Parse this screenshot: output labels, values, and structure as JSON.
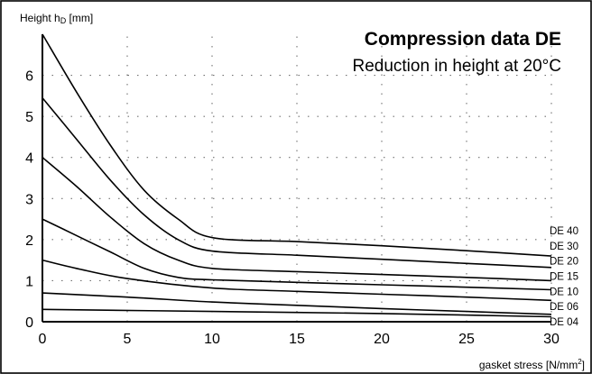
{
  "chart_data": {
    "type": "line",
    "title": "Compression data DE",
    "subtitle": "Reduction in height at 20°C",
    "ylabel": "Height h",
    "ylabel_subscript": "D",
    "ylabel_unit": "[mm]",
    "xlabel": "gasket stress [N/mm",
    "xlabel_superscript": "2",
    "xlabel_end": "]",
    "xlim": [
      0,
      30
    ],
    "ylim": [
      0,
      7
    ],
    "xticks": [
      0,
      5,
      10,
      15,
      20,
      25,
      30
    ],
    "yticks": [
      0,
      1,
      2,
      3,
      4,
      5,
      6
    ],
    "grid": true,
    "series": [
      {
        "name": "DE 40",
        "points": [
          [
            0,
            7.0
          ],
          [
            2,
            5.6
          ],
          [
            4,
            4.3
          ],
          [
            6,
            3.2
          ],
          [
            8,
            2.5
          ],
          [
            10,
            2.05
          ],
          [
            15,
            1.95
          ],
          [
            20,
            1.85
          ],
          [
            25,
            1.73
          ],
          [
            30,
            1.6
          ]
        ]
      },
      {
        "name": "DE 30",
        "points": [
          [
            0,
            5.45
          ],
          [
            2,
            4.45
          ],
          [
            4,
            3.45
          ],
          [
            6,
            2.6
          ],
          [
            8,
            2.0
          ],
          [
            10,
            1.72
          ],
          [
            15,
            1.62
          ],
          [
            20,
            1.52
          ],
          [
            25,
            1.42
          ],
          [
            30,
            1.32
          ]
        ]
      },
      {
        "name": "DE 20",
        "points": [
          [
            0,
            4.0
          ],
          [
            2,
            3.3
          ],
          [
            4,
            2.55
          ],
          [
            6,
            1.9
          ],
          [
            8,
            1.5
          ],
          [
            10,
            1.3
          ],
          [
            15,
            1.22
          ],
          [
            20,
            1.15
          ],
          [
            25,
            1.08
          ],
          [
            30,
            1.0
          ]
        ]
      },
      {
        "name": "DE 15",
        "points": [
          [
            0,
            2.5
          ],
          [
            2,
            2.1
          ],
          [
            4,
            1.7
          ],
          [
            6,
            1.3
          ],
          [
            8,
            1.08
          ],
          [
            10,
            1.02
          ],
          [
            15,
            0.96
          ],
          [
            20,
            0.9
          ],
          [
            25,
            0.84
          ],
          [
            30,
            0.78
          ]
        ]
      },
      {
        "name": "DE 10",
        "points": [
          [
            0,
            1.5
          ],
          [
            2,
            1.3
          ],
          [
            5,
            1.05
          ],
          [
            10,
            0.82
          ],
          [
            15,
            0.74
          ],
          [
            20,
            0.67
          ],
          [
            25,
            0.6
          ],
          [
            30,
            0.52
          ]
        ]
      },
      {
        "name": "DE 06",
        "points": [
          [
            0,
            0.7
          ],
          [
            5,
            0.6
          ],
          [
            10,
            0.48
          ],
          [
            15,
            0.4
          ],
          [
            20,
            0.32
          ],
          [
            25,
            0.25
          ],
          [
            30,
            0.18
          ]
        ]
      },
      {
        "name": "DE 04",
        "points": [
          [
            0,
            0.3
          ],
          [
            10,
            0.25
          ],
          [
            20,
            0.2
          ],
          [
            30,
            0.12
          ]
        ]
      }
    ]
  }
}
